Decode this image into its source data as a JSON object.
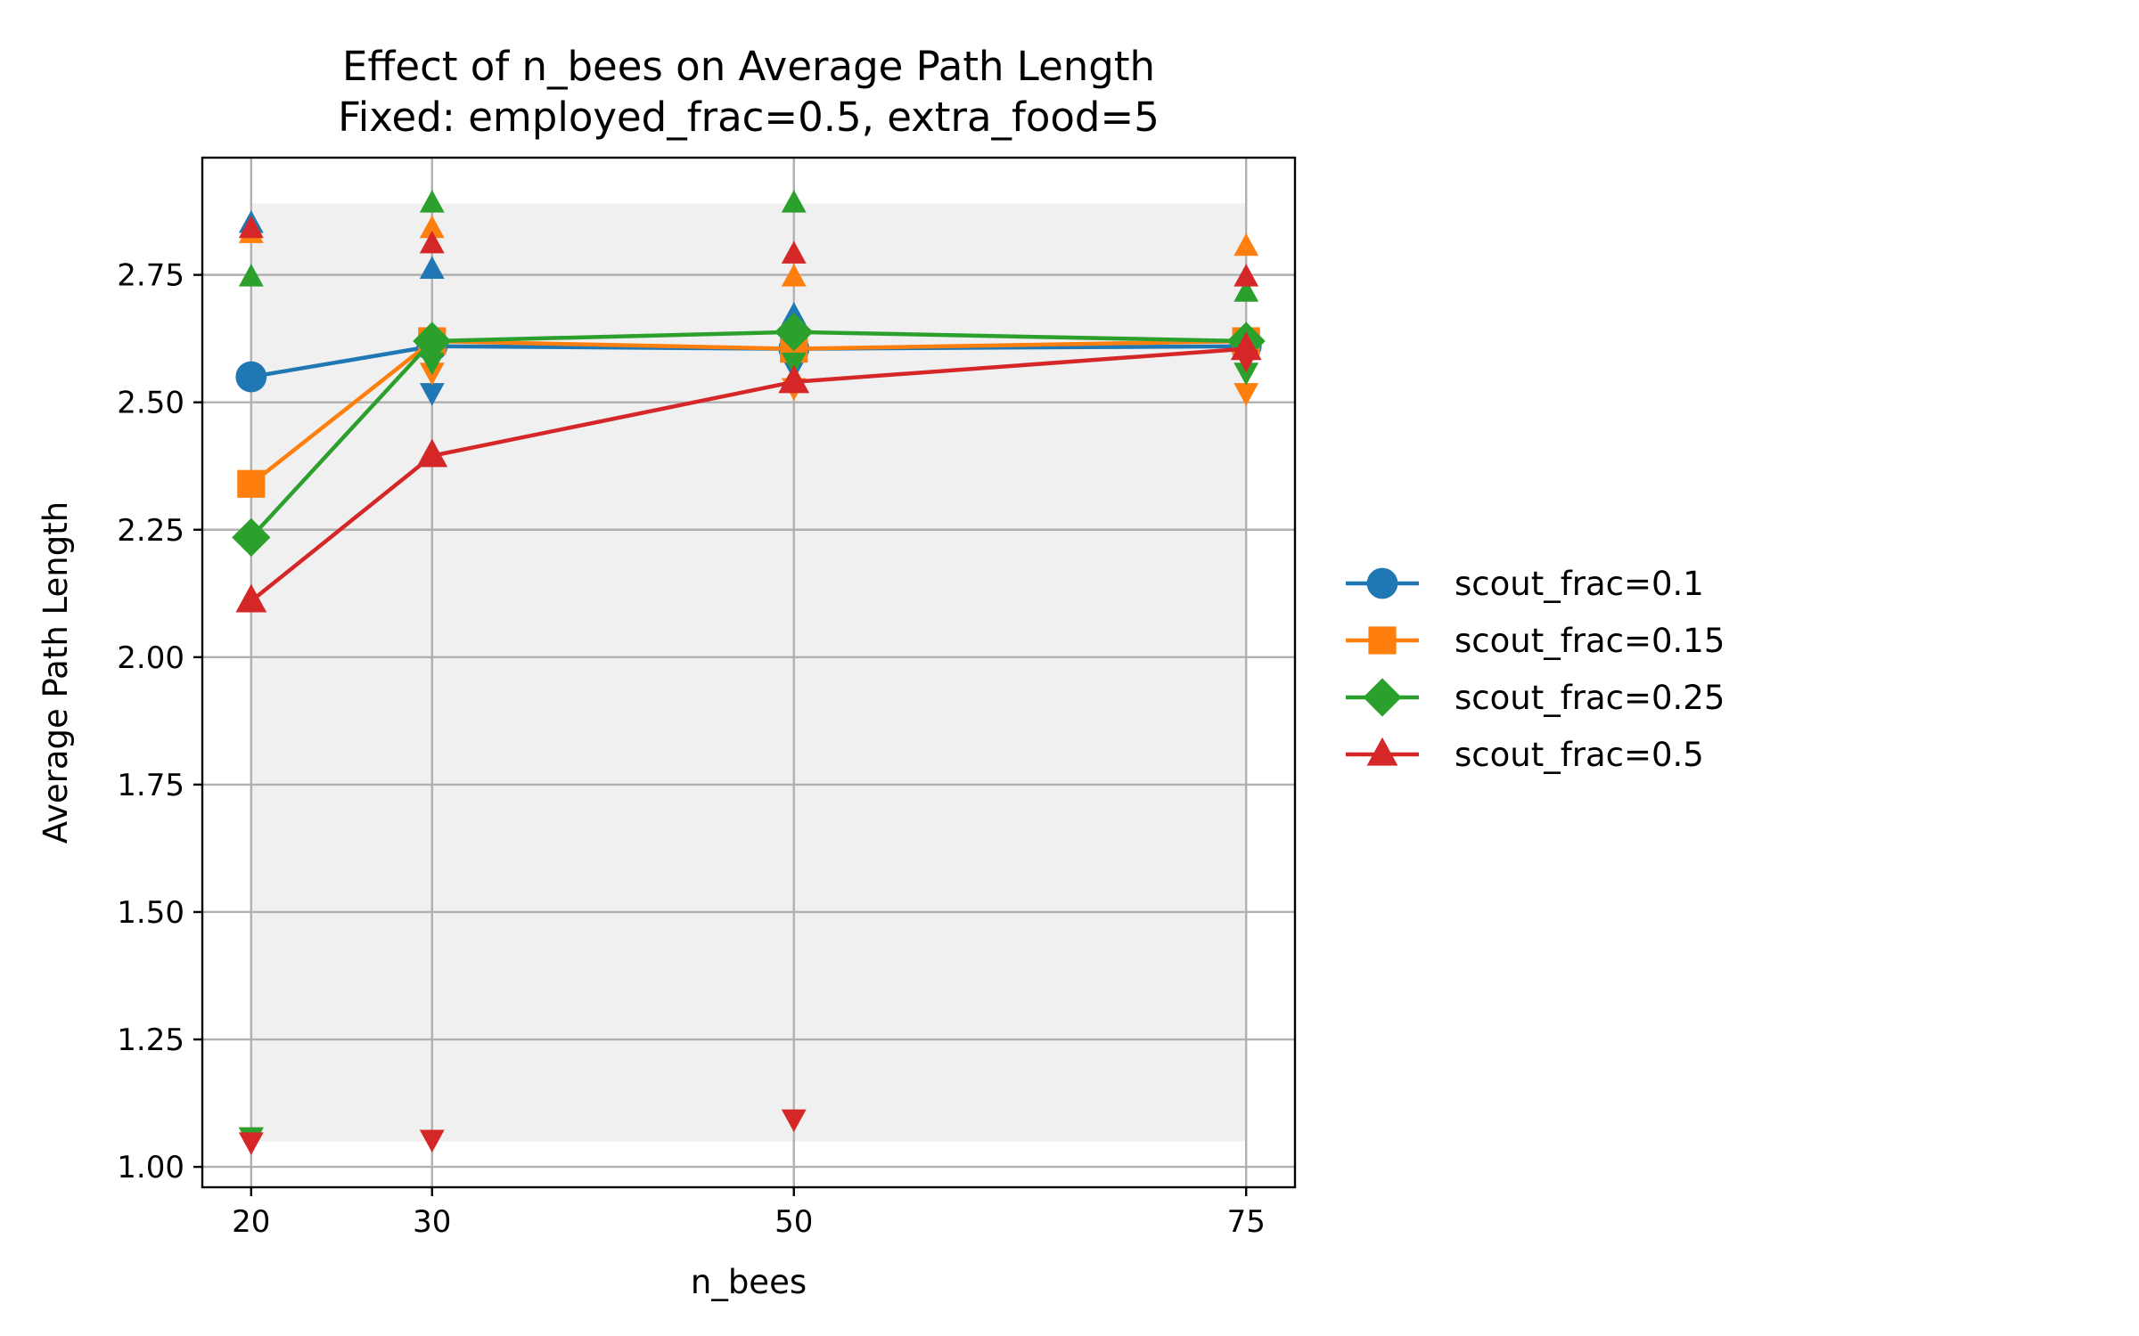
{
  "chart_data": {
    "type": "line",
    "title": "Effect of n_bees on Average Path Length",
    "subtitle": "Fixed: employed_frac=0.5, extra_food=5",
    "xlabel": "n_bees",
    "ylabel": "Average Path Length",
    "x": [
      20,
      30,
      50,
      75
    ],
    "x_ticks": [
      "20",
      "30",
      "50",
      "75"
    ],
    "xlim": [
      17.3,
      77.7
    ],
    "ylim": [
      0.96,
      2.98
    ],
    "y_ticks": [
      "1.00",
      "1.25",
      "1.50",
      "1.75",
      "2.00",
      "2.25",
      "2.50",
      "2.75"
    ],
    "y_tick_values": [
      1.0,
      1.25,
      1.5,
      1.75,
      2.0,
      2.25,
      2.5,
      2.75
    ],
    "grid": true,
    "legend_position": "right",
    "background_band": {
      "x_range": [
        20,
        75
      ],
      "y_range": [
        1.05,
        2.89
      ],
      "color": "#f0f0f0"
    },
    "series": [
      {
        "name": "scout_frac=0.1",
        "color": "#1f77b4",
        "marker": "circle",
        "values": [
          2.55,
          2.61,
          2.605,
          2.61
        ],
        "max": [
          2.85,
          2.76,
          2.67,
          2.62
        ],
        "min": [
          1.06,
          2.52,
          2.57,
          2.6
        ]
      },
      {
        "name": "scout_frac=0.15",
        "color": "#ff7f0e",
        "marker": "square",
        "values": [
          2.34,
          2.62,
          2.605,
          2.62
        ],
        "max": [
          2.83,
          2.84,
          2.745,
          2.805
        ],
        "min": [
          1.06,
          2.56,
          2.53,
          2.52
        ]
      },
      {
        "name": "scout_frac=0.25",
        "color": "#2ca02c",
        "marker": "diamond",
        "values": [
          2.235,
          2.62,
          2.638,
          2.62
        ],
        "max": [
          2.745,
          2.89,
          2.89,
          2.715
        ],
        "min": [
          1.06,
          2.58,
          2.58,
          2.56
        ]
      },
      {
        "name": "scout_frac=0.5",
        "color": "#d62728",
        "marker": "triangle-up",
        "values": [
          2.11,
          2.395,
          2.54,
          2.605
        ],
        "max": [
          2.84,
          2.81,
          2.79,
          2.745
        ],
        "min": [
          1.05,
          1.055,
          1.095,
          2.585
        ]
      }
    ]
  }
}
